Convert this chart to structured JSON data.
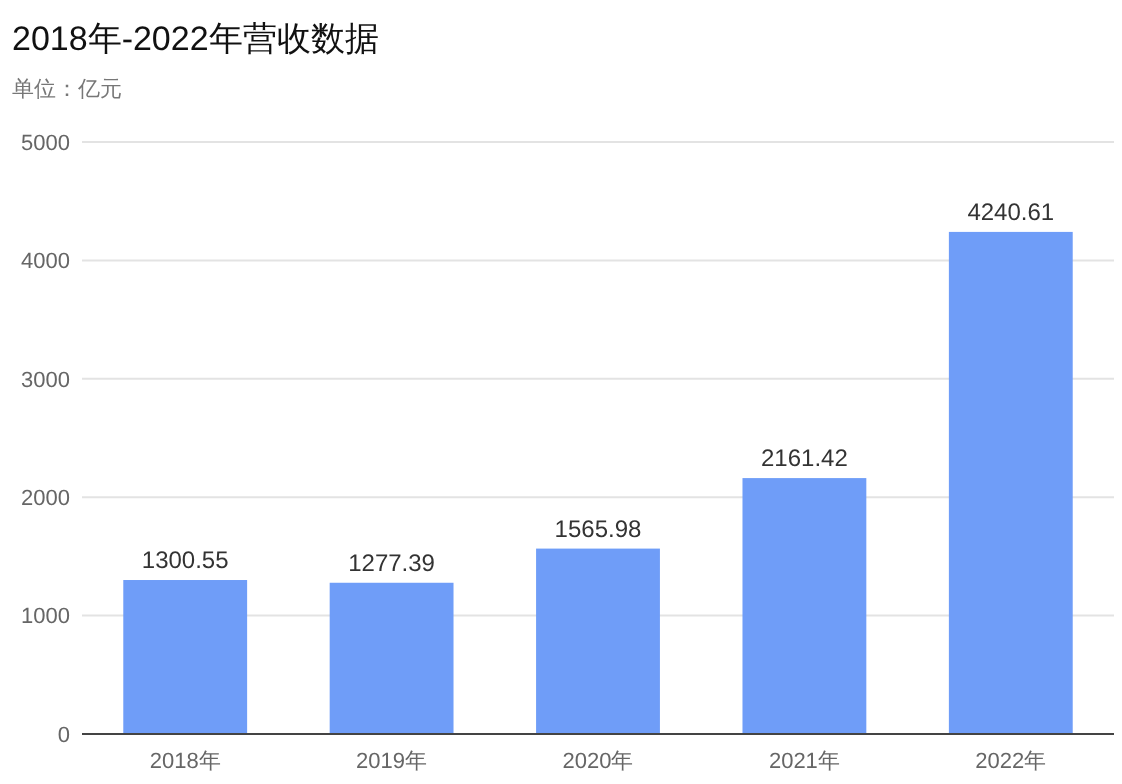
{
  "chart_data": {
    "type": "bar",
    "title": "2018年-2022年营收数据",
    "subtitle": "单位：亿元",
    "categories": [
      "2018年",
      "2019年",
      "2020年",
      "2021年",
      "2022年"
    ],
    "values": [
      1300.55,
      1277.39,
      1565.98,
      2161.42,
      4240.61
    ],
    "color": "#6f9df8",
    "ylim": [
      0,
      5000
    ],
    "yticks": [
      0,
      1000,
      2000,
      3000,
      4000,
      5000
    ],
    "grid": "y",
    "data_labels": true
  }
}
